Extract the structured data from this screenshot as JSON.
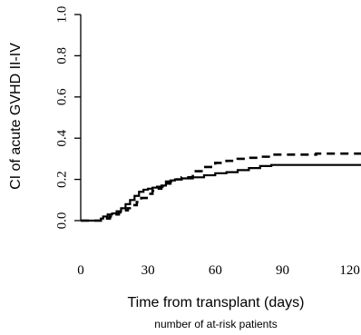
{
  "chart_data": {
    "type": "line",
    "xlabel": "Time from transplant (days)",
    "xlabel_sub": "number of at-risk patients",
    "ylabel": "CI of acute GVHD II-IV",
    "xlim": [
      0,
      125
    ],
    "ylim": [
      0,
      1.0
    ],
    "x_ticks": [
      0,
      30,
      60,
      90,
      120
    ],
    "x_tick_labels": [
      "0",
      "30",
      "60",
      "90",
      "120"
    ],
    "y_ticks": [
      0.0,
      0.2,
      0.4,
      0.6,
      0.8,
      1.0
    ],
    "y_tick_labels": [
      "0.0",
      "0.2",
      "0.4",
      "0.6",
      "0.8",
      "1.0"
    ],
    "grid": false,
    "series": [
      {
        "style": "solid",
        "color": "#000000",
        "points": [
          [
            0,
            0.0
          ],
          [
            7,
            0.0
          ],
          [
            9,
            0.01
          ],
          [
            10,
            0.02
          ],
          [
            12,
            0.03
          ],
          [
            14,
            0.035
          ],
          [
            16,
            0.045
          ],
          [
            18,
            0.06
          ],
          [
            20,
            0.08
          ],
          [
            22,
            0.1
          ],
          [
            24,
            0.12
          ],
          [
            26,
            0.14
          ],
          [
            28,
            0.15
          ],
          [
            30,
            0.155
          ],
          [
            32,
            0.16
          ],
          [
            34,
            0.165
          ],
          [
            36,
            0.17
          ],
          [
            38,
            0.19
          ],
          [
            40,
            0.195
          ],
          [
            42,
            0.2
          ],
          [
            45,
            0.205
          ],
          [
            50,
            0.21
          ],
          [
            55,
            0.22
          ],
          [
            60,
            0.23
          ],
          [
            65,
            0.235
          ],
          [
            70,
            0.245
          ],
          [
            75,
            0.255
          ],
          [
            80,
            0.265
          ],
          [
            85,
            0.27
          ],
          [
            120,
            0.27
          ],
          [
            125,
            0.275
          ]
        ]
      },
      {
        "style": "dashed",
        "color": "#000000",
        "points": [
          [
            0,
            0.0
          ],
          [
            7,
            0.0
          ],
          [
            9,
            0.005
          ],
          [
            11,
            0.01
          ],
          [
            13,
            0.02
          ],
          [
            15,
            0.03
          ],
          [
            17,
            0.04
          ],
          [
            19,
            0.05
          ],
          [
            21,
            0.06
          ],
          [
            23,
            0.075
          ],
          [
            25,
            0.09
          ],
          [
            27,
            0.11
          ],
          [
            30,
            0.13
          ],
          [
            32,
            0.145
          ],
          [
            34,
            0.155
          ],
          [
            36,
            0.165
          ],
          [
            38,
            0.18
          ],
          [
            40,
            0.19
          ],
          [
            42,
            0.2
          ],
          [
            45,
            0.21
          ],
          [
            50,
            0.24
          ],
          [
            55,
            0.26
          ],
          [
            60,
            0.28
          ],
          [
            65,
            0.29
          ],
          [
            70,
            0.3
          ],
          [
            75,
            0.305
          ],
          [
            80,
            0.31
          ],
          [
            85,
            0.32
          ],
          [
            100,
            0.32
          ],
          [
            105,
            0.325
          ],
          [
            125,
            0.33
          ]
        ]
      }
    ]
  }
}
